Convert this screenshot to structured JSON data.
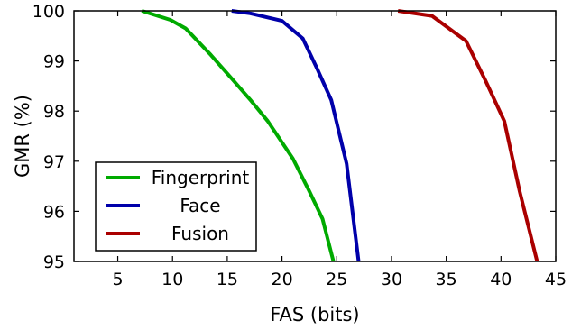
{
  "chart_data": {
    "type": "line",
    "xlabel": "FAS (bits)",
    "ylabel": "GMR (%)",
    "xlim": [
      1,
      45
    ],
    "ylim": [
      95,
      100
    ],
    "x_ticks": [
      5,
      10,
      15,
      20,
      25,
      30,
      35,
      40,
      45
    ],
    "y_ticks": [
      95,
      96,
      97,
      98,
      99,
      100
    ],
    "grid": false,
    "legend_position": "bottom-left",
    "series": [
      {
        "name": "Fingerprint",
        "color": "#00aa00",
        "points": [
          [
            7.2,
            100
          ],
          [
            9.8,
            99.82
          ],
          [
            11.2,
            99.65
          ],
          [
            13.5,
            99.12
          ],
          [
            15.6,
            98.6
          ],
          [
            17.2,
            98.2
          ],
          [
            18.7,
            97.8
          ],
          [
            21.0,
            97.05
          ],
          [
            22.5,
            96.4
          ],
          [
            23.7,
            95.85
          ],
          [
            24.7,
            95.0
          ]
        ]
      },
      {
        "name": "Face",
        "color": "#0000aa",
        "points": [
          [
            15.4,
            100
          ],
          [
            17.1,
            99.95
          ],
          [
            20.0,
            99.8
          ],
          [
            21.9,
            99.45
          ],
          [
            23.2,
            98.85
          ],
          [
            24.5,
            98.22
          ],
          [
            25.9,
            96.95
          ],
          [
            27.0,
            95.0
          ]
        ]
      },
      {
        "name": "Fusion",
        "color": "#aa0000",
        "points": [
          [
            30.6,
            100
          ],
          [
            33.7,
            99.9
          ],
          [
            36.8,
            99.4
          ],
          [
            38.6,
            98.6
          ],
          [
            40.3,
            97.8
          ],
          [
            41.7,
            96.4
          ],
          [
            43.3,
            95.0
          ]
        ]
      }
    ]
  }
}
